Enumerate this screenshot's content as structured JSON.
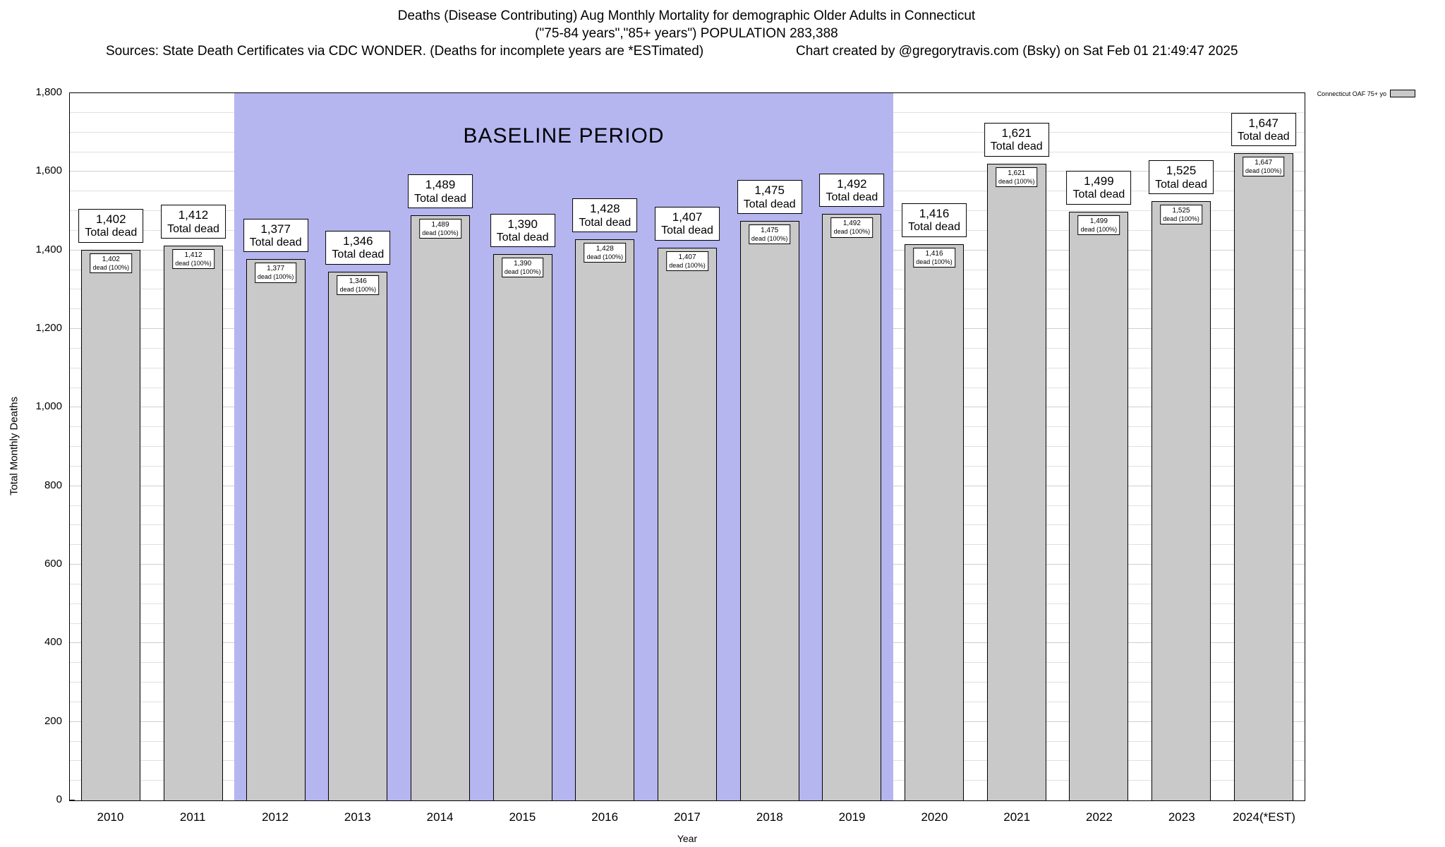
{
  "header": {
    "title_line1": "Deaths (Disease Contributing) Aug Monthly Mortality for demographic Older Adults in Connecticut",
    "title_line2": "(\"75-84 years\",\"85+ years\") POPULATION 283,388",
    "sources": "Sources: State Death Certificates via CDC WONDER. (Deaths for incomplete years are *ESTimated)",
    "credit": "Chart created by @gregorytravis.com (Bsky) on Sat Feb 01 21:49:47 2025"
  },
  "chart_data": {
    "type": "bar",
    "title": "Deaths (Disease Contributing) Aug Monthly Mortality for demographic Older Adults in Connecticut",
    "xlabel": "Year",
    "ylabel": "Total Monthly Deaths",
    "ylim": [
      0,
      1800
    ],
    "ytick_interval": 200,
    "minor_grid_interval": 50,
    "grid": true,
    "legend": "Connecticut OAF 75+ yo",
    "legend_position": "top-right",
    "bar_color": "#c9c9c9",
    "baseline_band": {
      "label": "BASELINE PERIOD",
      "from": "2012",
      "to": "2019",
      "color": "#b5b5f0"
    },
    "categories": [
      "2010",
      "2011",
      "2012",
      "2013",
      "2014",
      "2015",
      "2016",
      "2017",
      "2018",
      "2019",
      "2020",
      "2021",
      "2022",
      "2023",
      "2024(*EST)"
    ],
    "values": [
      1402,
      1412,
      1377,
      1346,
      1489,
      1390,
      1428,
      1407,
      1475,
      1492,
      1416,
      1621,
      1499,
      1525,
      1647
    ],
    "value_labels": [
      "1,402",
      "1,412",
      "1,377",
      "1,346",
      "1,489",
      "1,390",
      "1,428",
      "1,407",
      "1,475",
      "1,492",
      "1,416",
      "1,621",
      "1,499",
      "1,525",
      "1,647"
    ],
    "total_sub_label": "Total dead",
    "inner_sub_label": "dead (100%)",
    "ytick_labels": [
      "0",
      "200",
      "400",
      "600",
      "800",
      "1,000",
      "1,200",
      "1,400",
      "1,600",
      "1,800"
    ]
  }
}
